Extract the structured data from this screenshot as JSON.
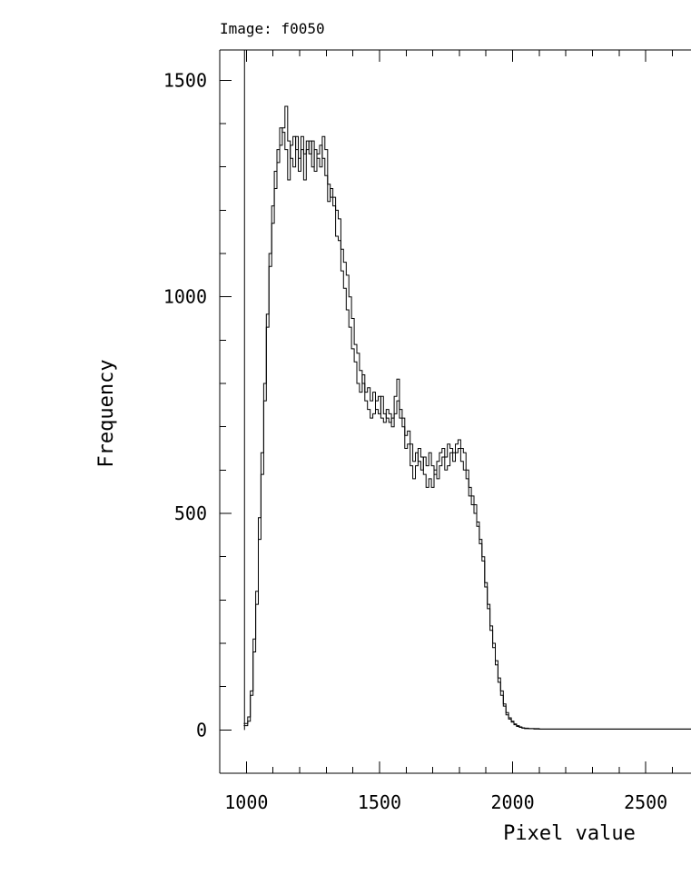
{
  "chart_data": {
    "type": "line",
    "title": "Image: f0050",
    "xlabel": "Pixel value",
    "ylabel": "Frequency",
    "xlim": [
      900,
      2670
    ],
    "ylim": [
      -100,
      1570
    ],
    "x_ticks": [
      1000,
      1500,
      2000,
      2500
    ],
    "y_ticks": [
      0,
      500,
      1000,
      1500
    ],
    "x_minor_step": 100,
    "y_minor_step": 100,
    "grid": false,
    "legend": "none",
    "style": "step histogram",
    "colors": {
      "line": "#000000",
      "background": "#ffffff"
    },
    "vertical_marker": {
      "x": 993,
      "y_top": 1570
    },
    "series": [
      {
        "x": [
          990,
          1005,
          1015,
          1025,
          1035,
          1045,
          1055,
          1065,
          1075,
          1085,
          1095,
          1105,
          1115,
          1125,
          1135,
          1145,
          1155,
          1165,
          1175,
          1185,
          1195,
          1205,
          1215,
          1225,
          1235,
          1245,
          1255,
          1265,
          1275,
          1285,
          1295,
          1305,
          1315,
          1325,
          1335,
          1345,
          1355,
          1365,
          1375,
          1385,
          1395,
          1405,
          1415,
          1425,
          1435,
          1445,
          1455,
          1465,
          1475,
          1485,
          1495,
          1505,
          1515,
          1525,
          1535,
          1545,
          1555,
          1565,
          1575,
          1585,
          1595,
          1605,
          1615,
          1625,
          1635,
          1645,
          1655,
          1665,
          1675,
          1685,
          1695,
          1705,
          1715,
          1725,
          1735,
          1745,
          1755,
          1765,
          1775,
          1785,
          1795,
          1805,
          1815,
          1825,
          1835,
          1845,
          1855,
          1865,
          1875,
          1885,
          1895,
          1905,
          1915,
          1925,
          1935,
          1945,
          1955,
          1965,
          1975,
          1985,
          1995,
          2005,
          2015,
          2025,
          2035,
          2045,
          2060,
          2080,
          2100,
          2150,
          2200,
          2250,
          2300,
          2350,
          2400,
          2450,
          2500,
          2550,
          2600,
          2650
        ],
        "values": [
          10,
          20,
          80,
          180,
          290,
          440,
          590,
          760,
          930,
          1070,
          1170,
          1250,
          1310,
          1350,
          1390,
          1440,
          1360,
          1320,
          1300,
          1370,
          1320,
          1370,
          1330,
          1340,
          1360,
          1300,
          1340,
          1320,
          1300,
          1370,
          1340,
          1260,
          1230,
          1230,
          1200,
          1180,
          1110,
          1080,
          1050,
          1000,
          950,
          890,
          870,
          830,
          800,
          780,
          790,
          760,
          780,
          740,
          730,
          770,
          730,
          720,
          710,
          720,
          730,
          760,
          740,
          720,
          680,
          690,
          660,
          620,
          640,
          620,
          600,
          630,
          610,
          640,
          610,
          590,
          620,
          640,
          650,
          630,
          660,
          650,
          640,
          660,
          670,
          650,
          640,
          600,
          560,
          540,
          520,
          480,
          440,
          400,
          330,
          290,
          230,
          190,
          150,
          110,
          80,
          55,
          35,
          25,
          18,
          12,
          8,
          6,
          4,
          3,
          3,
          2,
          2,
          2,
          2,
          2,
          2,
          2,
          2,
          2,
          2,
          2,
          2,
          2
        ]
      },
      {
        "x": [
          990,
          1005,
          1015,
          1025,
          1035,
          1045,
          1055,
          1065,
          1075,
          1085,
          1095,
          1105,
          1115,
          1125,
          1135,
          1145,
          1155,
          1165,
          1175,
          1185,
          1195,
          1205,
          1215,
          1225,
          1235,
          1245,
          1255,
          1265,
          1275,
          1285,
          1295,
          1305,
          1315,
          1325,
          1335,
          1345,
          1355,
          1365,
          1375,
          1385,
          1395,
          1405,
          1415,
          1425,
          1435,
          1445,
          1455,
          1465,
          1475,
          1485,
          1495,
          1505,
          1515,
          1525,
          1535,
          1545,
          1555,
          1565,
          1575,
          1585,
          1595,
          1605,
          1615,
          1625,
          1635,
          1645,
          1655,
          1665,
          1675,
          1685,
          1695,
          1705,
          1715,
          1725,
          1735,
          1745,
          1755,
          1765,
          1775,
          1785,
          1795,
          1805,
          1815,
          1825,
          1835,
          1845,
          1855,
          1865,
          1875,
          1885,
          1895,
          1905,
          1915,
          1925,
          1935,
          1945,
          1955,
          1965,
          1975,
          1985,
          1995,
          2005,
          2015,
          2025,
          2035,
          2045,
          2060,
          2080,
          2100,
          2150,
          2200,
          2250,
          2300,
          2350,
          2400,
          2450,
          2500,
          2550,
          2600,
          2650
        ],
        "values": [
          15,
          30,
          90,
          210,
          320,
          490,
          640,
          800,
          960,
          1100,
          1210,
          1290,
          1340,
          1390,
          1380,
          1340,
          1270,
          1350,
          1370,
          1340,
          1290,
          1340,
          1270,
          1360,
          1330,
          1360,
          1290,
          1330,
          1350,
          1320,
          1280,
          1220,
          1250,
          1210,
          1140,
          1130,
          1060,
          1020,
          970,
          930,
          880,
          850,
          800,
          780,
          820,
          760,
          740,
          720,
          730,
          760,
          770,
          720,
          710,
          740,
          730,
          700,
          770,
          810,
          720,
          700,
          650,
          660,
          610,
          580,
          610,
          650,
          630,
          590,
          560,
          580,
          560,
          600,
          580,
          610,
          630,
          600,
          610,
          640,
          620,
          640,
          650,
          620,
          600,
          580,
          540,
          520,
          500,
          470,
          430,
          390,
          340,
          280,
          240,
          200,
          160,
          120,
          90,
          60,
          40,
          28,
          20,
          14,
          10,
          7,
          5,
          4,
          3,
          3,
          2,
          2,
          2,
          2,
          2,
          2,
          2,
          2,
          2,
          2,
          2,
          2
        ]
      }
    ]
  }
}
